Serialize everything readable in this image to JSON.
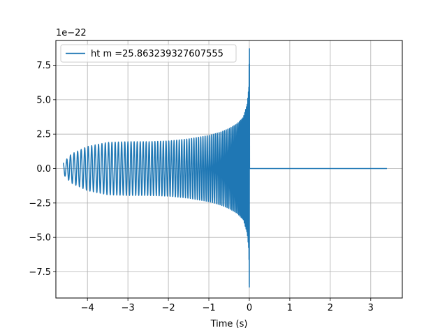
{
  "chart_data": {
    "type": "line",
    "title": "",
    "xlabel": "Time (s)",
    "ylabel": "",
    "offset_label": "1e−22",
    "xlim": [
      -4.78,
      3.78
    ],
    "ylim": [
      -9.4e-22,
      9.3e-22
    ],
    "x_ticks": [
      -4,
      -3,
      -2,
      -1,
      0,
      1,
      2,
      3
    ],
    "x_tick_labels": [
      "−4",
      "−3",
      "−2",
      "−1",
      "0",
      "1",
      "2",
      "3"
    ],
    "y_ticks": [
      -7.5e-22,
      -5e-22,
      -2.5e-22,
      0,
      2.5e-22,
      5e-22,
      7.5e-22
    ],
    "y_tick_labels": [
      "−7.5",
      "−5.0",
      "−2.5",
      "0.0",
      "2.5",
      "5.0",
      "7.5"
    ],
    "grid": true,
    "legend_position": "top-left",
    "series": [
      {
        "name": "ht m =25.863239327607555",
        "color": "#1f77b4",
        "envelope": {
          "t": [
            -4.6,
            -4.4,
            -4.0,
            -3.5,
            -3.0,
            -2.5,
            -2.0,
            -1.5,
            -1.0,
            -0.7,
            -0.5,
            -0.3,
            -0.15,
            -0.05,
            -0.01,
            0.0
          ],
          "amp": [
            4e-23,
            1.05e-22,
            1.6e-22,
            1.9e-22,
            1.95e-22,
            1.95e-22,
            2e-22,
            2.15e-22,
            2.4e-22,
            2.65e-22,
            2.9e-22,
            3.25e-22,
            3.7e-22,
            4.7e-22,
            6e-22,
            8.6e-22
          ]
        },
        "post_merger": {
          "t_start": 0.0,
          "t_end": 3.4,
          "value": 0
        }
      }
    ]
  }
}
